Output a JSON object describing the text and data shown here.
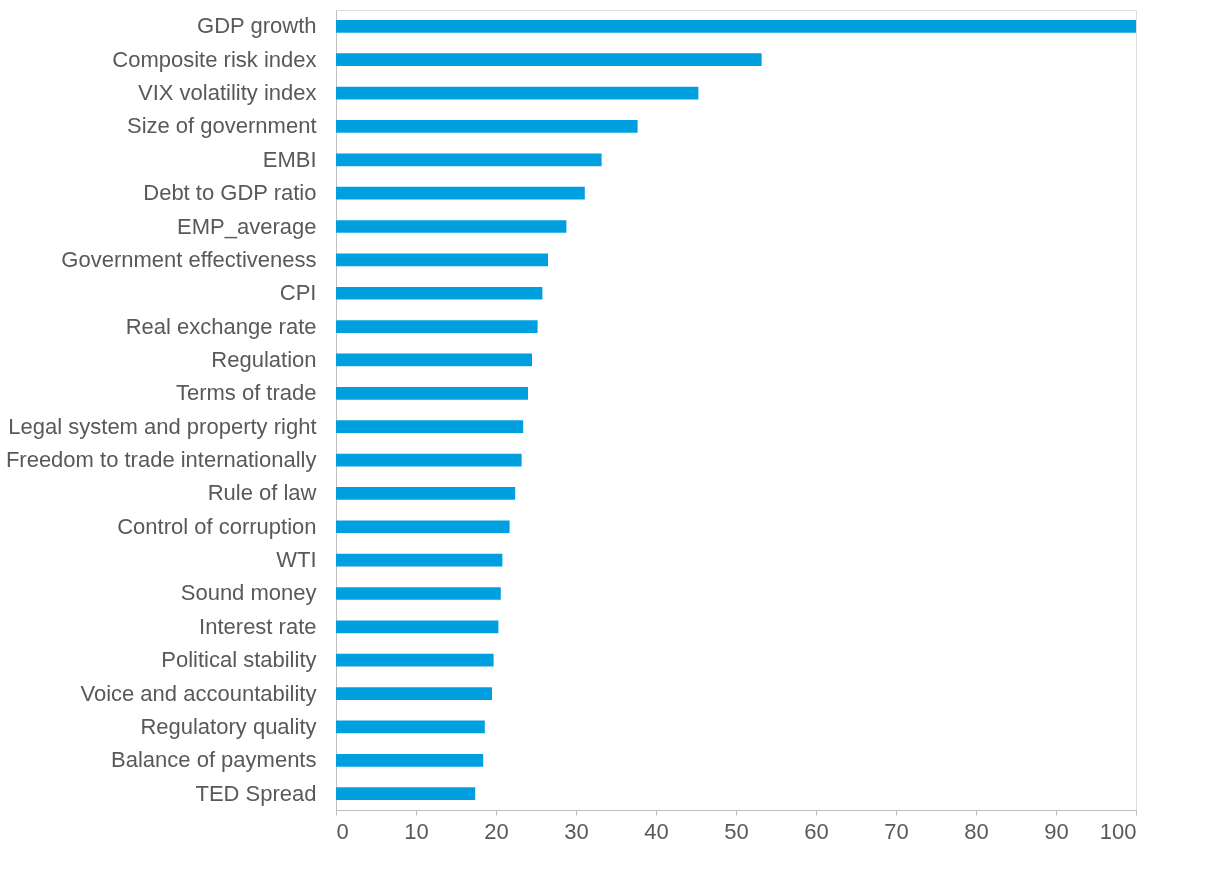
{
  "chart_data": {
    "type": "bar",
    "orientation": "horizontal",
    "categories": [
      "GDP growth",
      "Composite risk index",
      "VIX volatility index",
      "Size of government",
      "EMBI",
      "Debt to GDP ratio",
      "EMP_average",
      "Government effectiveness",
      "CPI",
      "Real exchange rate",
      "Regulation",
      "Terms of trade",
      "Legal system and property right",
      "Freedom to trade internationally",
      "Rule of law",
      "Control of corruption",
      "WTI",
      "Sound money",
      "Interest rate",
      "Political stability",
      "Voice and accountability",
      "Regulatory quality",
      "Balance of payments",
      "TED Spread"
    ],
    "values": [
      100,
      53.2,
      45.3,
      37.7,
      33.2,
      31.1,
      28.8,
      26.5,
      25.8,
      25.2,
      24.5,
      24.0,
      23.4,
      23.2,
      22.4,
      21.7,
      20.8,
      20.6,
      20.3,
      19.7,
      19.5,
      18.6,
      18.4,
      17.4
    ],
    "color": "#00a0e0",
    "xlim": [
      0,
      100
    ],
    "xticks": [
      0,
      10,
      20,
      30,
      40,
      50,
      60,
      70,
      80,
      90,
      100
    ],
    "grid": false
  }
}
